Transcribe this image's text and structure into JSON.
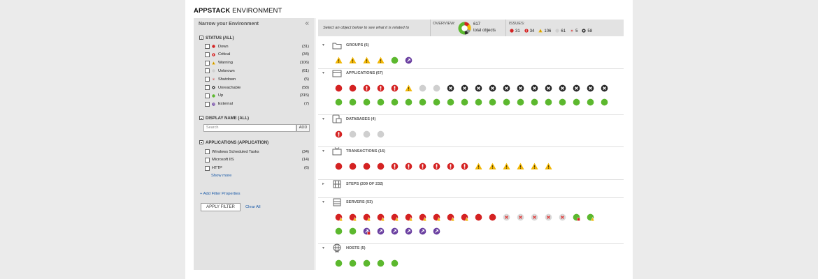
{
  "header": {
    "title_bold": "APPSTACK",
    "title_rest": "ENVIRONMENT"
  },
  "sidebar": {
    "heading": "Narrow your Environment",
    "collapse_glyph": "«",
    "status_section": "STATUS (ALL)",
    "status_filters": [
      {
        "label": "Down",
        "count": "(31)",
        "icon": "down"
      },
      {
        "label": "Critical",
        "count": "(34)",
        "icon": "critical"
      },
      {
        "label": "Warning",
        "count": "(106)",
        "icon": "warning"
      },
      {
        "label": "Unknown",
        "count": "(61)",
        "icon": "unknown"
      },
      {
        "label": "Shutdown",
        "count": "(5)",
        "icon": "shutdown"
      },
      {
        "label": "Unreachable",
        "count": "(58)",
        "icon": "unreachable"
      },
      {
        "label": "Up",
        "count": "(315)",
        "icon": "up"
      },
      {
        "label": "External",
        "count": "(7)",
        "icon": "external"
      }
    ],
    "display_name_section": "DISPLAY NAME (ALL)",
    "search_placeholder": "Search",
    "add_label": "ADD",
    "applications_section": "APPLICATIONS (APPLICATION)",
    "app_filters": [
      {
        "label": "Windows Scheduled Tasks",
        "count": "(34)"
      },
      {
        "label": "Microsoft IIS",
        "count": "(14)"
      },
      {
        "label": "HTTP",
        "count": "(6)"
      }
    ],
    "show_more": "Show more",
    "add_filter_properties": "+ Add Filter Properties",
    "apply_filter": "APPLY FILTER",
    "clear_all": "Clear All"
  },
  "toolbar": {
    "hint": "Select an object below to see what it is related to",
    "overview_label": "OVERVIEW:",
    "overview_count": "617",
    "overview_sub": "total objects",
    "issues_label": "ISSUES:",
    "issues": [
      {
        "icon": "down",
        "count": "31"
      },
      {
        "icon": "critical",
        "count": "34"
      },
      {
        "icon": "warning",
        "count": "106"
      },
      {
        "icon": "unknown",
        "count": "61"
      },
      {
        "icon": "shutdown",
        "count": "5"
      },
      {
        "icon": "unreachable",
        "count": "58"
      }
    ]
  },
  "colors": {
    "down": "#d42222",
    "critical": "#d42222",
    "warning": "#f2b705",
    "unknown": "#cfcfcf",
    "shutdown": "#e04040",
    "unreachable": "#2a2a2a",
    "up": "#5cb82e",
    "external": "#6a3fa0"
  },
  "groups": [
    {
      "label": "GROUPS (6)",
      "icon": "folder-icon",
      "expanded": true,
      "rows": [
        [
          "warning",
          "warning",
          "warning",
          "warning",
          "up",
          "external"
        ]
      ]
    },
    {
      "label": "APPLICATIONS (67)",
      "icon": "application-window-icon",
      "expanded": true,
      "rows": [
        [
          "down",
          "down",
          "critical",
          "critical",
          "critical",
          "warning",
          "unknown",
          "unknown",
          "unreachable",
          "unreachable",
          "unreachable",
          "unreachable",
          "unreachable",
          "unreachable",
          "unreachable",
          "unreachable",
          "unreachable",
          "unreachable",
          "unreachable",
          "unreachable"
        ],
        [
          "up",
          "up",
          "up",
          "up",
          "up",
          "up",
          "up",
          "up",
          "up",
          "up",
          "up",
          "up",
          "up",
          "up",
          "up",
          "up",
          "up",
          "up",
          "up",
          "up"
        ]
      ]
    },
    {
      "label": "DATABASES (4)",
      "icon": "database-icon",
      "expanded": true,
      "rows": [
        [
          "critical",
          "unknown",
          "unknown",
          "unknown"
        ]
      ]
    },
    {
      "label": "TRANSACTIONS (16)",
      "icon": "tv-icon",
      "expanded": true,
      "rows": [
        [
          "down",
          "down",
          "down",
          "down",
          "critical",
          "critical",
          "critical",
          "critical",
          "critical",
          "critical",
          "warning",
          "warning",
          "warning",
          "warning",
          "warning",
          "warning"
        ]
      ]
    },
    {
      "label": "STEPS (209 OF 232)",
      "icon": "film-steps-icon",
      "expanded": false,
      "rows": []
    },
    {
      "label": "SERVERS (53)",
      "icon": "server-icon",
      "expanded": true,
      "rows": [
        [
          "down-warning",
          "down-warning",
          "down-warning",
          "down-warning",
          "down-warning",
          "down-warning",
          "down-warning",
          "down-warning",
          "down-warning",
          "down-warning",
          "down",
          "down",
          "shutdown",
          "shutdown",
          "shutdown",
          "shutdown",
          "shutdown",
          "up-down",
          "up-warning"
        ],
        [
          "up",
          "up",
          "external-down",
          "external",
          "external",
          "external",
          "external",
          "external"
        ]
      ]
    },
    {
      "label": "HOSTS (5)",
      "icon": "host-globe-icon",
      "expanded": true,
      "rows": [
        [
          "up",
          "up",
          "up",
          "up",
          "up"
        ]
      ]
    }
  ]
}
